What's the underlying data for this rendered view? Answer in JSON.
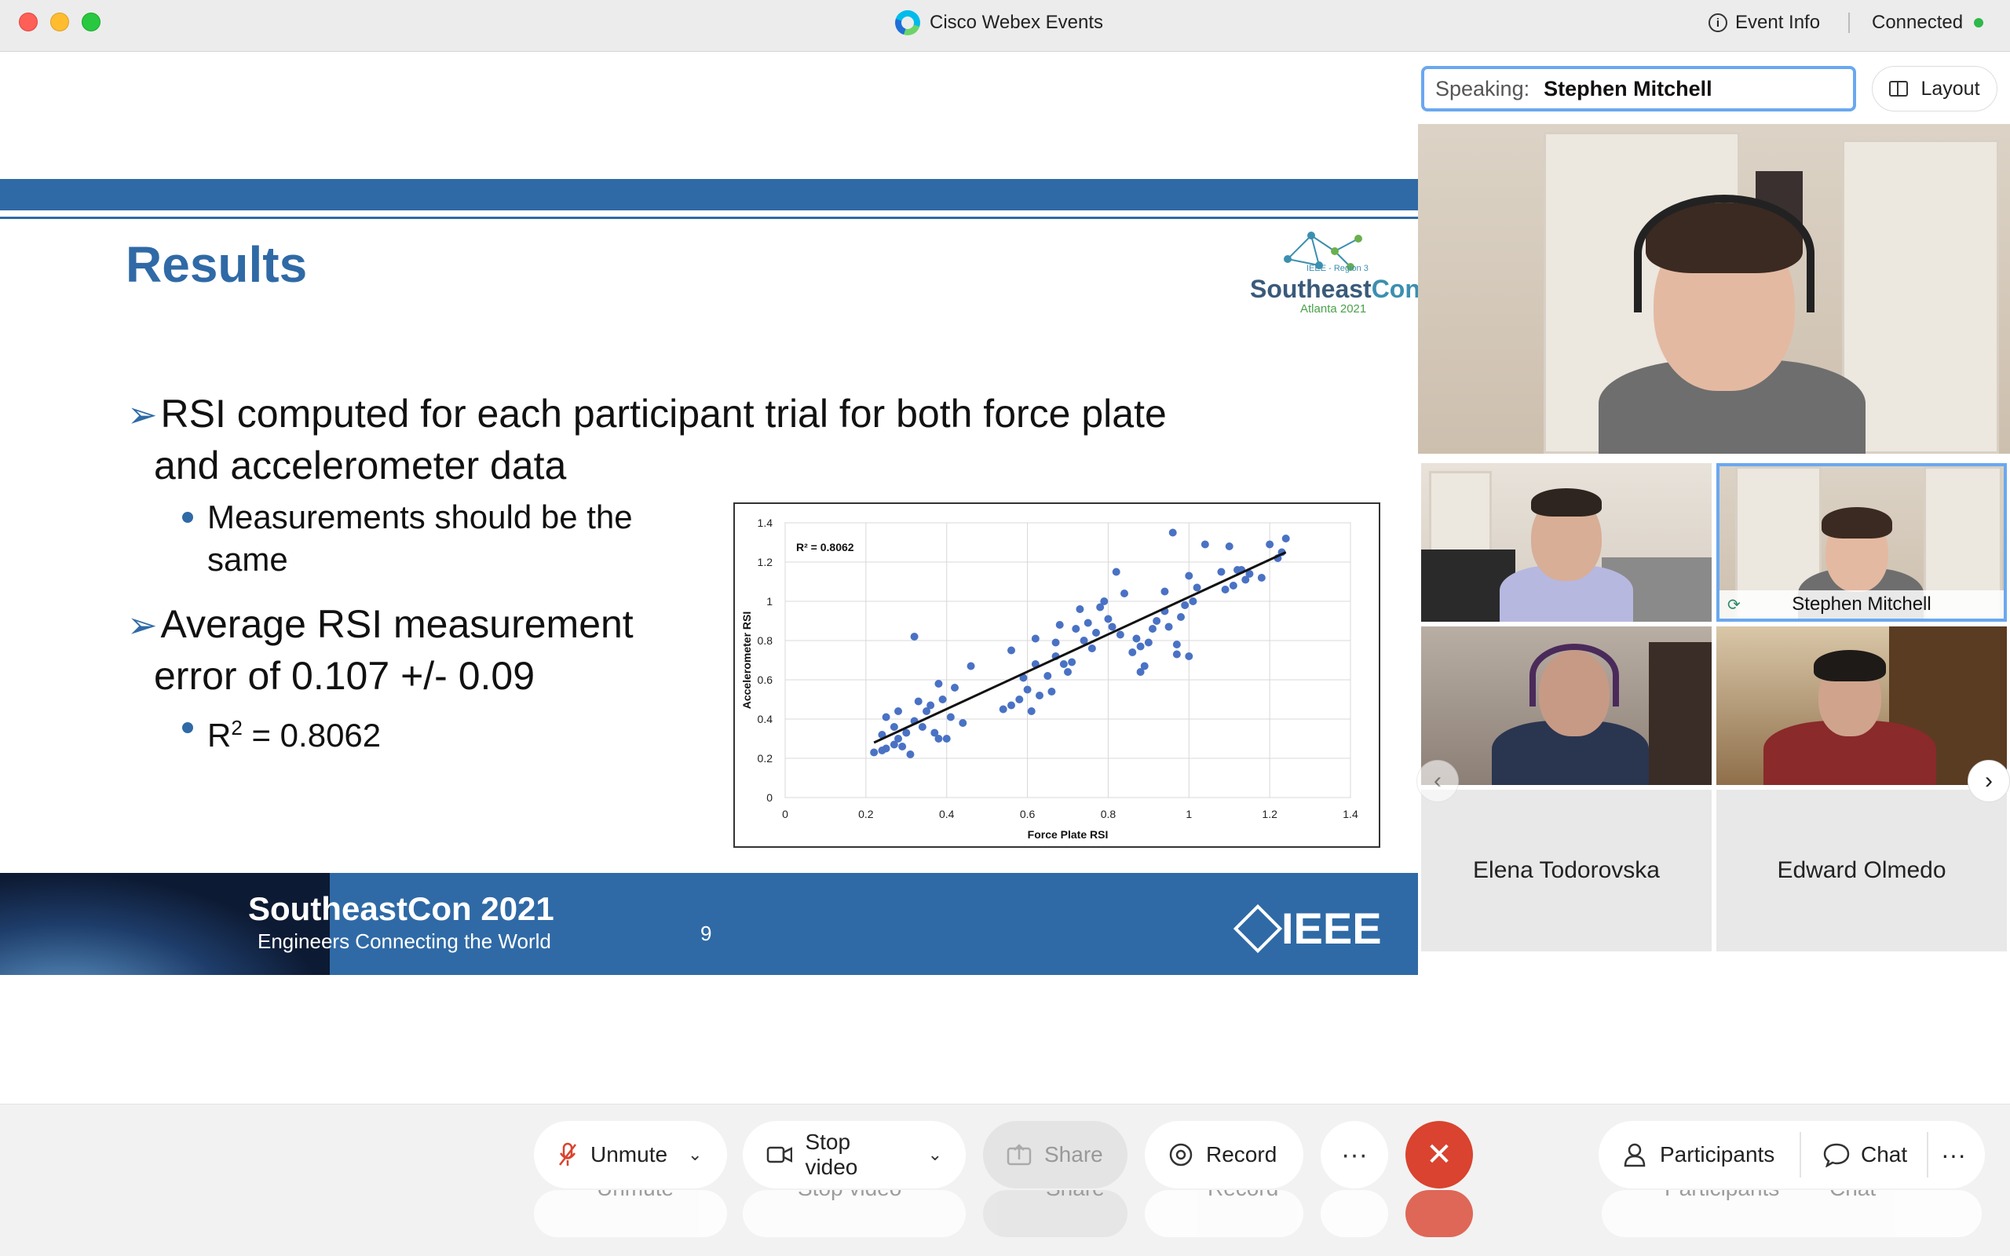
{
  "window": {
    "app_title": "Cisco Webex Events",
    "event_info": "Event Info",
    "status": "Connected"
  },
  "slide": {
    "title": "Results",
    "logo_text_1": "Southeast",
    "logo_text_2": "Con",
    "logo_small": "IEEE - Region 3",
    "logo_sub": "Atlanta 2021",
    "bullet1_line1": "RSI computed for each participant trial for both force plate",
    "bullet1_line2": "and accelerometer data",
    "sub1_line1": "Measurements should be the",
    "sub1_line2": "same",
    "bullet2_line1": "Average RSI measurement",
    "bullet2_line2": "error of 0.107 +/- 0.09",
    "sub2_prefix": "R",
    "sub2_sup": "2",
    "sub2_suffix": " = 0.8062",
    "footer_title": "SoutheastCon 2021",
    "footer_sub": "Engineers Connecting the World",
    "page_number": "9",
    "footer_brand": "IEEE"
  },
  "chart_data": {
    "type": "scatter",
    "xlabel": "Force Plate RSI",
    "ylabel": "Accelerometer RSI",
    "annotation": "R² = 0.8062",
    "xlim": [
      0,
      1.4
    ],
    "ylim": [
      0,
      1.4
    ],
    "xticks": [
      "0",
      "0.2",
      "0.4",
      "0.6",
      "0.8",
      "1",
      "1.2",
      "1.4"
    ],
    "yticks": [
      "0",
      "0.2",
      "0.4",
      "0.6",
      "0.8",
      "1",
      "1.2",
      "1.4"
    ],
    "grid": true,
    "trendline": {
      "x": [
        0.22,
        1.24
      ],
      "y": [
        0.28,
        1.25
      ]
    },
    "points": [
      [
        0.22,
        0.23
      ],
      [
        0.24,
        0.32
      ],
      [
        0.24,
        0.24
      ],
      [
        0.25,
        0.41
      ],
      [
        0.25,
        0.25
      ],
      [
        0.27,
        0.36
      ],
      [
        0.27,
        0.27
      ],
      [
        0.28,
        0.44
      ],
      [
        0.28,
        0.3
      ],
      [
        0.29,
        0.26
      ],
      [
        0.3,
        0.33
      ],
      [
        0.31,
        0.22
      ],
      [
        0.32,
        0.39
      ],
      [
        0.32,
        0.82
      ],
      [
        0.33,
        0.49
      ],
      [
        0.34,
        0.36
      ],
      [
        0.35,
        0.44
      ],
      [
        0.36,
        0.47
      ],
      [
        0.37,
        0.33
      ],
      [
        0.38,
        0.58
      ],
      [
        0.38,
        0.3
      ],
      [
        0.39,
        0.5
      ],
      [
        0.4,
        0.3
      ],
      [
        0.41,
        0.41
      ],
      [
        0.42,
        0.56
      ],
      [
        0.44,
        0.38
      ],
      [
        0.46,
        0.67
      ],
      [
        0.54,
        0.45
      ],
      [
        0.56,
        0.47
      ],
      [
        0.56,
        0.75
      ],
      [
        0.58,
        0.5
      ],
      [
        0.59,
        0.61
      ],
      [
        0.6,
        0.55
      ],
      [
        0.61,
        0.44
      ],
      [
        0.62,
        0.68
      ],
      [
        0.62,
        0.81
      ],
      [
        0.63,
        0.52
      ],
      [
        0.65,
        0.62
      ],
      [
        0.66,
        0.54
      ],
      [
        0.67,
        0.72
      ],
      [
        0.67,
        0.79
      ],
      [
        0.68,
        0.88
      ],
      [
        0.69,
        0.68
      ],
      [
        0.7,
        0.64
      ],
      [
        0.71,
        0.69
      ],
      [
        0.72,
        0.86
      ],
      [
        0.73,
        0.96
      ],
      [
        0.74,
        0.8
      ],
      [
        0.75,
        0.89
      ],
      [
        0.76,
        0.76
      ],
      [
        0.77,
        0.84
      ],
      [
        0.78,
        0.97
      ],
      [
        0.79,
        1.0
      ],
      [
        0.8,
        0.91
      ],
      [
        0.81,
        0.87
      ],
      [
        0.82,
        1.15
      ],
      [
        0.83,
        0.83
      ],
      [
        0.84,
        1.04
      ],
      [
        0.86,
        0.74
      ],
      [
        0.87,
        0.81
      ],
      [
        0.88,
        0.64
      ],
      [
        0.88,
        0.77
      ],
      [
        0.89,
        0.67
      ],
      [
        0.9,
        0.79
      ],
      [
        0.91,
        0.86
      ],
      [
        0.92,
        0.9
      ],
      [
        0.94,
        0.95
      ],
      [
        0.94,
        1.05
      ],
      [
        0.95,
        0.87
      ],
      [
        0.96,
        1.35
      ],
      [
        0.97,
        0.78
      ],
      [
        0.97,
        0.73
      ],
      [
        0.98,
        0.92
      ],
      [
        0.99,
        0.98
      ],
      [
        1.0,
        1.13
      ],
      [
        1.0,
        0.72
      ],
      [
        1.01,
        1.0
      ],
      [
        1.02,
        1.07
      ],
      [
        1.04,
        1.29
      ],
      [
        1.08,
        1.15
      ],
      [
        1.09,
        1.06
      ],
      [
        1.1,
        1.28
      ],
      [
        1.11,
        1.08
      ],
      [
        1.12,
        1.16
      ],
      [
        1.13,
        1.16
      ],
      [
        1.14,
        1.11
      ],
      [
        1.15,
        1.14
      ],
      [
        1.18,
        1.12
      ],
      [
        1.2,
        1.29
      ],
      [
        1.22,
        1.22
      ],
      [
        1.23,
        1.25
      ],
      [
        1.24,
        1.32
      ]
    ]
  },
  "right_panel": {
    "speaking_label": "Speaking:",
    "speaking_name": "Stephen Mitchell",
    "layout_label": "Layout",
    "tile_self_name": "Stephen Mitchell",
    "tile_name_1": "Elena Todorovska",
    "tile_name_2": "Edward Olmedo"
  },
  "controls": {
    "unmute": "Unmute",
    "stop_video": "Stop video",
    "share": "Share",
    "record": "Record",
    "more": "···",
    "participants": "Participants",
    "chat": "Chat"
  },
  "colors": {
    "slide_blue": "#2f6aa6",
    "end_call_red": "#d9432f",
    "speaking_border": "#6aa8f0",
    "scatter_point": "#4a72c4"
  }
}
